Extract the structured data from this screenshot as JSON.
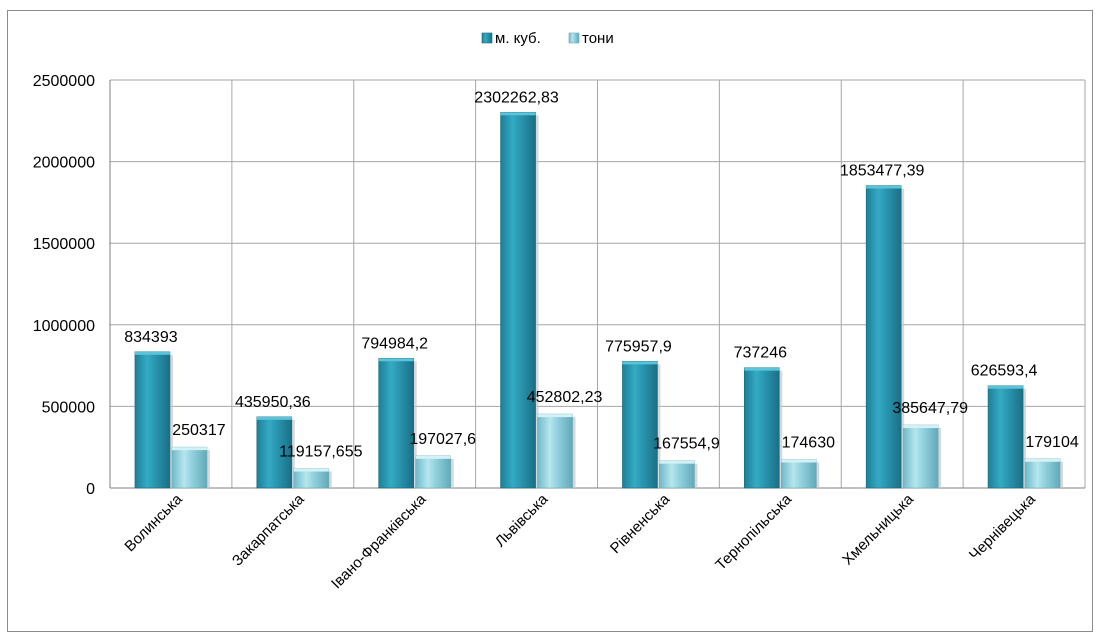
{
  "chart_data": {
    "type": "bar",
    "categories": [
      "Волинська",
      "Закарпатська",
      "Івано-Франківська",
      "Львівська",
      "Рівненська",
      "Тернопільська",
      "Хмельницька",
      "Чернівецька"
    ],
    "series": [
      {
        "name": "м. куб.",
        "values": [
          834393,
          435950.36,
          794984.2,
          2302262.83,
          775957.9,
          737246,
          1853477.39,
          626593.4
        ],
        "labels": [
          "834393",
          "435950,36",
          "794984,2",
          "2302262,83",
          "775957,9",
          "737246",
          "1853477,39",
          "626593,4"
        ],
        "color": "#2a98b2"
      },
      {
        "name": "тони",
        "values": [
          250317,
          119157.655,
          197027.6,
          452802.23,
          167554.9,
          174630,
          385647.79,
          179104
        ],
        "labels": [
          "250317",
          "119157,655",
          "197027,6",
          "452802,23",
          "167554,9",
          "174630",
          "385647,79",
          "179104"
        ],
        "color": "#8fd0dd"
      }
    ],
    "yticks": [
      "0",
      "500000",
      "1000000",
      "1500000",
      "2000000",
      "2500000"
    ],
    "ylim": [
      0,
      2500000
    ],
    "grid": true,
    "legend_position": "top"
  }
}
